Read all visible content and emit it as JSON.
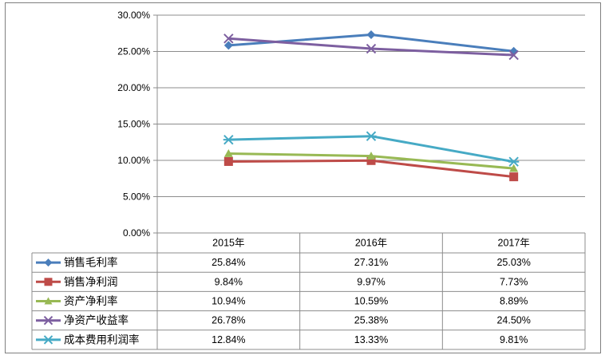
{
  "chart_data": {
    "type": "line",
    "title": "",
    "xlabel": "",
    "ylabel": "",
    "categories": [
      "2015年",
      "2016年",
      "2017年"
    ],
    "ylim": [
      0,
      30
    ],
    "yticks": [
      "0.00%",
      "5.00%",
      "10.00%",
      "15.00%",
      "20.00%",
      "25.00%",
      "30.00%"
    ],
    "grid": true,
    "legend": "data-table-left",
    "series": [
      {
        "name": "销售毛利率",
        "values": [
          25.84,
          27.31,
          25.03
        ],
        "labels": [
          "25.84%",
          "27.31%",
          "25.03%"
        ],
        "color": "#4a7ebb",
        "marker": "diamond"
      },
      {
        "name": "销售净利润",
        "values": [
          9.84,
          9.97,
          7.73
        ],
        "labels": [
          "9.84%",
          "9.97%",
          "7.73%"
        ],
        "color": "#be4b48",
        "marker": "square"
      },
      {
        "name": "资产净利率",
        "values": [
          10.94,
          10.59,
          8.89
        ],
        "labels": [
          "10.94%",
          "10.59%",
          "8.89%"
        ],
        "color": "#98b954",
        "marker": "triangle"
      },
      {
        "name": "净资产收益率",
        "values": [
          26.78,
          25.38,
          24.5
        ],
        "labels": [
          "26.78%",
          "25.38%",
          "24.50%"
        ],
        "color": "#7d5fa0",
        "marker": "x"
      },
      {
        "name": "成本费用利润率",
        "values": [
          12.84,
          13.33,
          9.81
        ],
        "labels": [
          "12.84%",
          "13.33%",
          "9.81%"
        ],
        "color": "#46aac5",
        "marker": "asterisk"
      }
    ]
  }
}
